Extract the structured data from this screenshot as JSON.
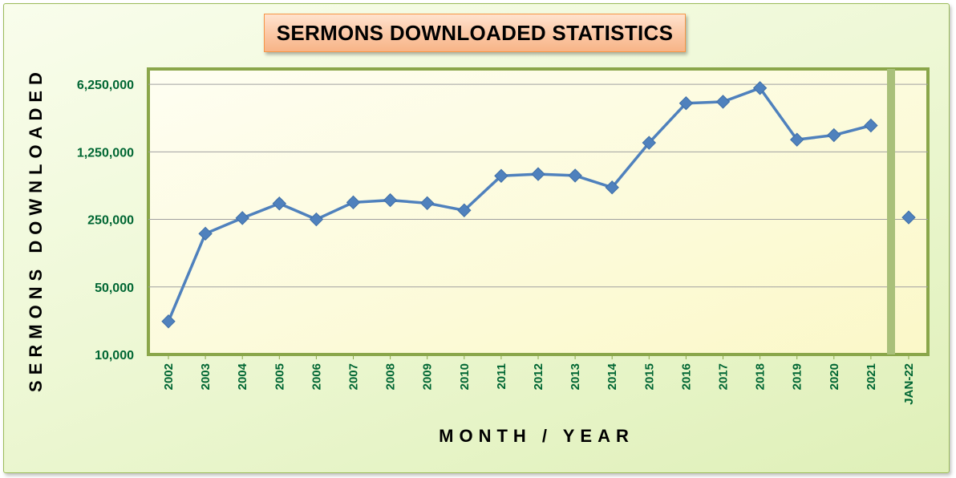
{
  "chart_data": {
    "type": "line",
    "title": "SERMONS DOWNLOADED STATISTICS",
    "xlabel": "MONTH / YEAR",
    "ylabel": "SERMONS DOWNLOADED",
    "y_scale": "log",
    "ylim": [
      10000,
      9000000
    ],
    "y_ticks": [
      {
        "value": 10000,
        "label": "10,000"
      },
      {
        "value": 50000,
        "label": "50,000"
      },
      {
        "value": 250000,
        "label": "250,000"
      },
      {
        "value": 1250000,
        "label": "1,250,000"
      },
      {
        "value": 6250000,
        "label": "6,250,000"
      }
    ],
    "grid": true,
    "legend": "none",
    "categories": [
      "2002",
      "2003",
      "2004",
      "2005",
      "2006",
      "2007",
      "2008",
      "2009",
      "2010",
      "2011",
      "2012",
      "2013",
      "2014",
      "2015",
      "2016",
      "2017",
      "2018",
      "2019",
      "2020",
      "2021"
    ],
    "series": [
      {
        "values": [
          22000,
          178000,
          258000,
          365000,
          250000,
          375000,
          395000,
          368000,
          310000,
          705000,
          735000,
          710000,
          535000,
          1550000,
          3980000,
          4120000,
          5710000,
          1670000,
          1860000,
          2340000
        ]
      }
    ],
    "separate_point": {
      "category": "JAN-22",
      "value": 262000
    },
    "colors": {
      "line": "#4f81bd",
      "tick_text": "#006633",
      "plot_bg": "#fdfdd8",
      "plot_border": "#8aa64a",
      "separator": "#a9c07a",
      "gridline": "#a0a0a0",
      "title_bg": "#fbc7a4",
      "title_border": "#f79646"
    }
  }
}
